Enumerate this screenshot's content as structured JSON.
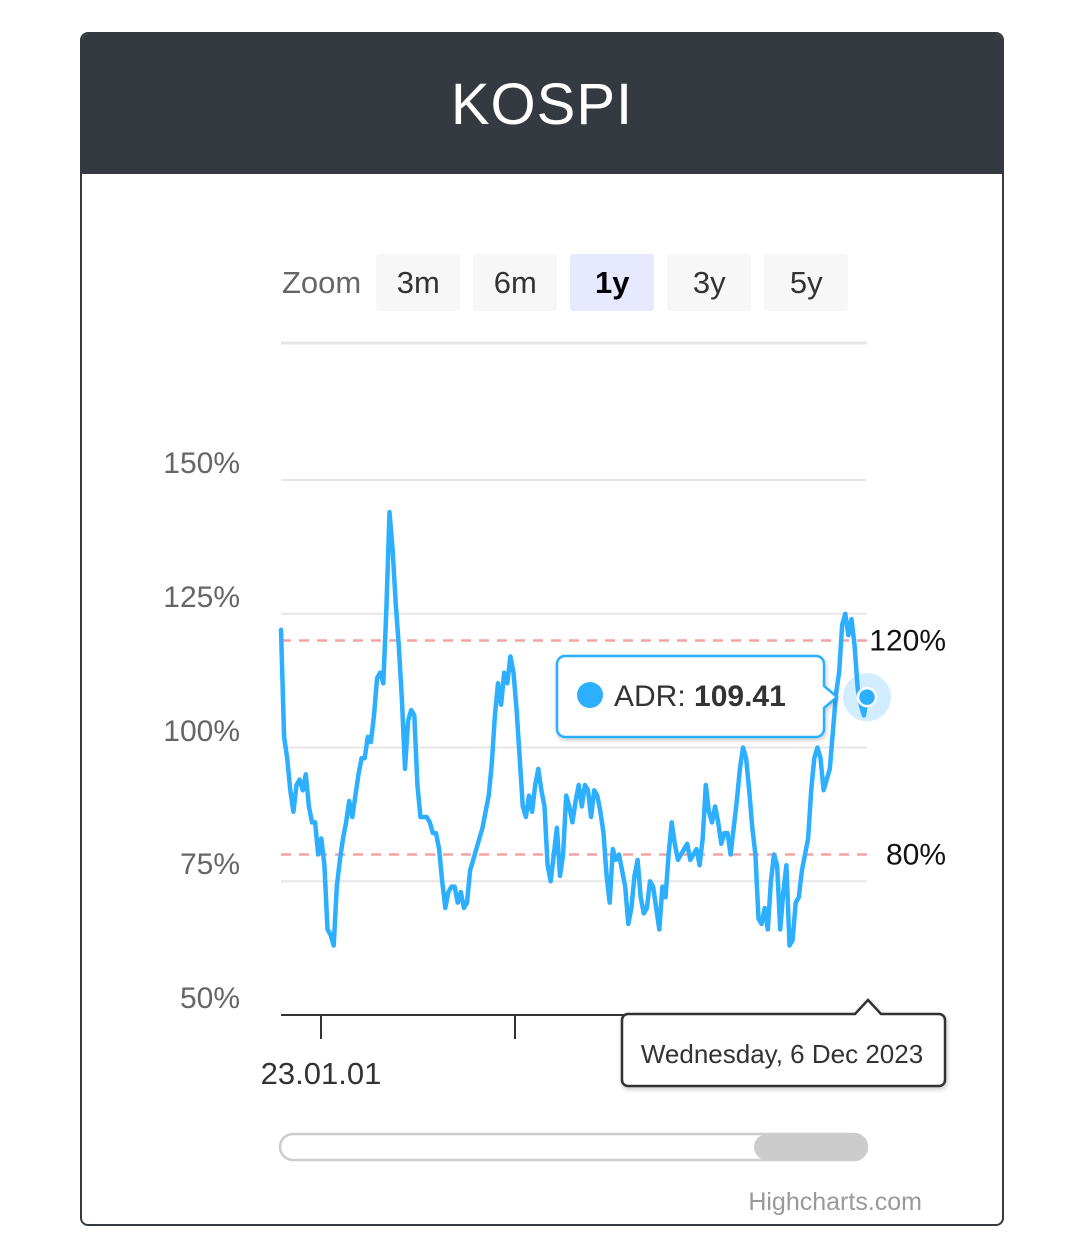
{
  "title": "KOSPI",
  "zoom": {
    "label": "Zoom",
    "buttons": [
      "3m",
      "6m",
      "1y",
      "3y",
      "5y"
    ],
    "selected": "1y"
  },
  "credits": "Highcharts.com",
  "tooltip": {
    "series": "ADR",
    "separator": ": ",
    "value": "109.41",
    "date": "Wednesday, 6 Dec 2023"
  },
  "colors": {
    "series": "#2caffe",
    "threshold": "#f4a3a3",
    "header": "#343a40"
  },
  "chart_data": {
    "type": "line",
    "series": [
      {
        "name": "ADR",
        "values": [
          122,
          102,
          98,
          92,
          88,
          93,
          94,
          92,
          95,
          89,
          86,
          86,
          80,
          83,
          78,
          66,
          65,
          63,
          74,
          79,
          83,
          86,
          90,
          87,
          91,
          95,
          98,
          98,
          102,
          101,
          106,
          113,
          114,
          112,
          126,
          144,
          137,
          127,
          119,
          109,
          96,
          105,
          107,
          106,
          93,
          87,
          87,
          87,
          86,
          84,
          84,
          81,
          75,
          70,
          73,
          74,
          74,
          71,
          73,
          70,
          71,
          77,
          79,
          81,
          83,
          85,
          88,
          91,
          97,
          106,
          112,
          108,
          114,
          112,
          117,
          114,
          107,
          98,
          89,
          87,
          91,
          88,
          93,
          96,
          92,
          89,
          78,
          75,
          80,
          85,
          76,
          80,
          91,
          89,
          86,
          90,
          93,
          89,
          93,
          92,
          87,
          92,
          91,
          88,
          84,
          76,
          71,
          81,
          79,
          80,
          77,
          74,
          67,
          70,
          76,
          79,
          72,
          69,
          70,
          75,
          74,
          70,
          66,
          74,
          72,
          80,
          86,
          82,
          79,
          80,
          81,
          82,
          79,
          80,
          81,
          78,
          83,
          93,
          88,
          86,
          89,
          86,
          82,
          84,
          84,
          80,
          85,
          90,
          96,
          100,
          98,
          92,
          85,
          80,
          68,
          67,
          70,
          66,
          75,
          80,
          78,
          66,
          73,
          78,
          63,
          64,
          71,
          72,
          77,
          80,
          83,
          92,
          98,
          100,
          98,
          92,
          94,
          96,
          103,
          110,
          114,
          123,
          125,
          121,
          124,
          119,
          111,
          108,
          106,
          109.41
        ],
        "x_start": "2023-01-01",
        "x_end": "2023-12-06"
      }
    ],
    "ylim": [
      50,
      150
    ],
    "y_ticks": [
      "50%",
      "75%",
      "100%",
      "125%",
      "150%"
    ],
    "x_tick_labels": [
      "23.01.01"
    ],
    "plot_lines": [
      {
        "value": 120,
        "label": "120%"
      },
      {
        "value": 80,
        "label": "80%"
      }
    ],
    "grid": true,
    "legend": "none",
    "range_selector": true,
    "navigator_scrollbar": true
  }
}
